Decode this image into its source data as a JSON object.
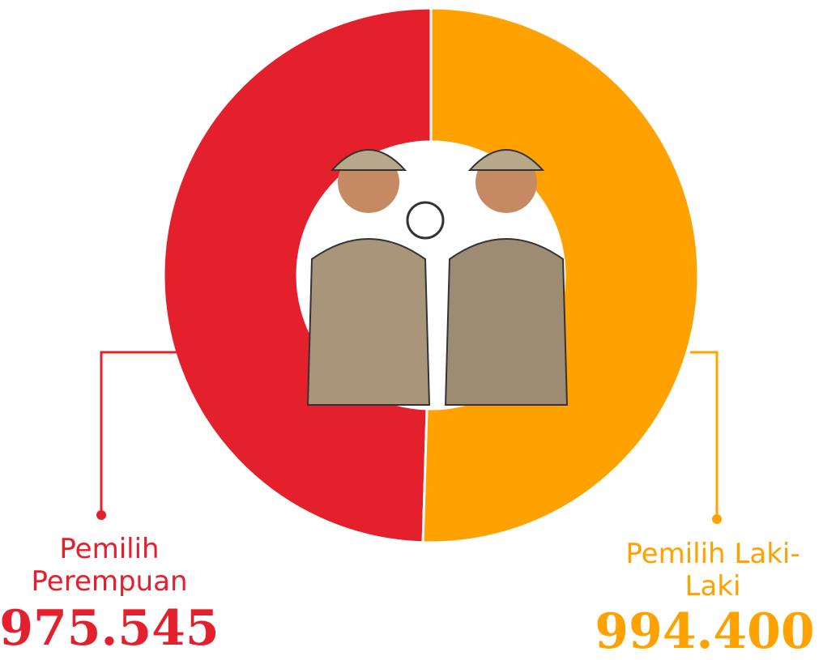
{
  "chart_data": {
    "type": "donut",
    "categories": [
      "Pemilih Perempuan",
      "Pemilih Laki-Laki"
    ],
    "values": [
      975545,
      994400
    ],
    "value_labels": [
      "975.545",
      "994.400"
    ],
    "colors": [
      "#e3202c",
      "#ffa200"
    ]
  }
}
